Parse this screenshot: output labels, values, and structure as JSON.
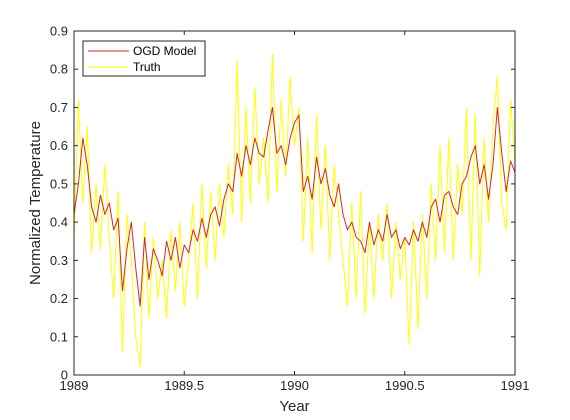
{
  "chart_data": {
    "type": "line",
    "xlabel": "Year",
    "ylabel": "Normalized Temperature",
    "xlim": [
      1989,
      1991
    ],
    "ylim": [
      0,
      0.9
    ],
    "xticks": [
      {
        "value": 1989,
        "label": "1989"
      },
      {
        "value": 1989.5,
        "label": "1989.5"
      },
      {
        "value": 1990,
        "label": "1990"
      },
      {
        "value": 1990.5,
        "label": "1990.5"
      },
      {
        "value": 1991,
        "label": "1991"
      }
    ],
    "yticks": [
      {
        "value": 0,
        "label": "0"
      },
      {
        "value": 0.1,
        "label": "0.1"
      },
      {
        "value": 0.2,
        "label": "0.2"
      },
      {
        "value": 0.3,
        "label": "0.3"
      },
      {
        "value": 0.4,
        "label": "0.4"
      },
      {
        "value": 0.5,
        "label": "0.5"
      },
      {
        "value": 0.6,
        "label": "0.6"
      },
      {
        "value": 0.7,
        "label": "0.7"
      },
      {
        "value": 0.8,
        "label": "0.8"
      },
      {
        "value": 0.9,
        "label": "0.9"
      }
    ],
    "grid": false,
    "legend_position": "top-left",
    "series": [
      {
        "name": "OGD Model",
        "color": "#d62728",
        "x": [
          1989.0,
          1989.02,
          1989.04,
          1989.06,
          1989.08,
          1989.1,
          1989.12,
          1989.14,
          1989.16,
          1989.18,
          1989.2,
          1989.22,
          1989.24,
          1989.26,
          1989.28,
          1989.3,
          1989.32,
          1989.34,
          1989.36,
          1989.38,
          1989.4,
          1989.42,
          1989.44,
          1989.46,
          1989.48,
          1989.5,
          1989.52,
          1989.54,
          1989.56,
          1989.58,
          1989.6,
          1989.62,
          1989.64,
          1989.66,
          1989.68,
          1989.7,
          1989.72,
          1989.74,
          1989.76,
          1989.78,
          1989.8,
          1989.82,
          1989.84,
          1989.86,
          1989.88,
          1989.9,
          1989.92,
          1989.94,
          1989.96,
          1989.98,
          1990.0,
          1990.02,
          1990.04,
          1990.06,
          1990.08,
          1990.1,
          1990.12,
          1990.14,
          1990.16,
          1990.18,
          1990.2,
          1990.22,
          1990.24,
          1990.26,
          1990.28,
          1990.3,
          1990.32,
          1990.34,
          1990.36,
          1990.38,
          1990.4,
          1990.42,
          1990.44,
          1990.46,
          1990.48,
          1990.5,
          1990.52,
          1990.54,
          1990.56,
          1990.58,
          1990.6,
          1990.62,
          1990.64,
          1990.66,
          1990.68,
          1990.7,
          1990.72,
          1990.74,
          1990.76,
          1990.78,
          1990.8,
          1990.82,
          1990.84,
          1990.86,
          1990.88,
          1990.9,
          1990.92,
          1990.94,
          1990.96,
          1990.98,
          1991.0
        ],
        "values": [
          0.42,
          0.5,
          0.62,
          0.55,
          0.44,
          0.4,
          0.47,
          0.42,
          0.45,
          0.38,
          0.41,
          0.22,
          0.33,
          0.4,
          0.28,
          0.18,
          0.36,
          0.25,
          0.33,
          0.3,
          0.26,
          0.35,
          0.3,
          0.36,
          0.28,
          0.34,
          0.32,
          0.38,
          0.35,
          0.41,
          0.36,
          0.42,
          0.44,
          0.39,
          0.46,
          0.5,
          0.48,
          0.58,
          0.52,
          0.6,
          0.55,
          0.62,
          0.58,
          0.57,
          0.64,
          0.7,
          0.58,
          0.6,
          0.55,
          0.62,
          0.66,
          0.68,
          0.48,
          0.52,
          0.46,
          0.57,
          0.5,
          0.54,
          0.47,
          0.44,
          0.5,
          0.42,
          0.38,
          0.4,
          0.36,
          0.35,
          0.32,
          0.4,
          0.34,
          0.38,
          0.35,
          0.42,
          0.36,
          0.38,
          0.33,
          0.36,
          0.34,
          0.38,
          0.35,
          0.4,
          0.36,
          0.44,
          0.46,
          0.4,
          0.47,
          0.48,
          0.44,
          0.42,
          0.5,
          0.52,
          0.57,
          0.6,
          0.5,
          0.55,
          0.46,
          0.55,
          0.7,
          0.58,
          0.48,
          0.56,
          0.53
        ]
      },
      {
        "name": "Truth",
        "color": "#ffff00",
        "x": [
          1989.0,
          1989.02,
          1989.04,
          1989.06,
          1989.08,
          1989.1,
          1989.12,
          1989.14,
          1989.16,
          1989.18,
          1989.2,
          1989.22,
          1989.24,
          1989.26,
          1989.28,
          1989.3,
          1989.32,
          1989.34,
          1989.36,
          1989.38,
          1989.4,
          1989.42,
          1989.44,
          1989.46,
          1989.48,
          1989.5,
          1989.52,
          1989.54,
          1989.56,
          1989.58,
          1989.6,
          1989.62,
          1989.64,
          1989.66,
          1989.68,
          1989.7,
          1989.72,
          1989.74,
          1989.76,
          1989.78,
          1989.8,
          1989.82,
          1989.84,
          1989.86,
          1989.88,
          1989.9,
          1989.92,
          1989.94,
          1989.96,
          1989.98,
          1990.0,
          1990.02,
          1990.04,
          1990.06,
          1990.08,
          1990.1,
          1990.12,
          1990.14,
          1990.16,
          1990.18,
          1990.2,
          1990.22,
          1990.24,
          1990.26,
          1990.28,
          1990.3,
          1990.32,
          1990.34,
          1990.36,
          1990.38,
          1990.4,
          1990.42,
          1990.44,
          1990.46,
          1990.48,
          1990.5,
          1990.52,
          1990.54,
          1990.56,
          1990.58,
          1990.6,
          1990.62,
          1990.64,
          1990.66,
          1990.68,
          1990.7,
          1990.72,
          1990.74,
          1990.76,
          1990.78,
          1990.8,
          1990.82,
          1990.84,
          1990.86,
          1990.88,
          1990.9,
          1990.92,
          1990.94,
          1990.96,
          1990.98,
          1991.0
        ],
        "values": [
          0.36,
          0.72,
          0.45,
          0.65,
          0.32,
          0.5,
          0.33,
          0.55,
          0.36,
          0.2,
          0.48,
          0.06,
          0.42,
          0.3,
          0.1,
          0.02,
          0.4,
          0.15,
          0.36,
          0.2,
          0.3,
          0.15,
          0.38,
          0.22,
          0.4,
          0.18,
          0.3,
          0.45,
          0.2,
          0.5,
          0.28,
          0.48,
          0.3,
          0.5,
          0.36,
          0.55,
          0.42,
          0.82,
          0.4,
          0.7,
          0.45,
          0.75,
          0.5,
          0.62,
          0.45,
          0.84,
          0.48,
          0.72,
          0.52,
          0.78,
          0.6,
          0.7,
          0.35,
          0.62,
          0.32,
          0.68,
          0.38,
          0.6,
          0.3,
          0.55,
          0.42,
          0.3,
          0.18,
          0.45,
          0.2,
          0.48,
          0.16,
          0.4,
          0.2,
          0.42,
          0.3,
          0.45,
          0.2,
          0.4,
          0.25,
          0.36,
          0.08,
          0.4,
          0.12,
          0.42,
          0.2,
          0.5,
          0.3,
          0.6,
          0.32,
          0.62,
          0.3,
          0.55,
          0.42,
          0.7,
          0.3,
          0.68,
          0.26,
          0.62,
          0.4,
          0.65,
          0.78,
          0.45,
          0.38,
          0.72,
          0.55
        ]
      }
    ]
  }
}
